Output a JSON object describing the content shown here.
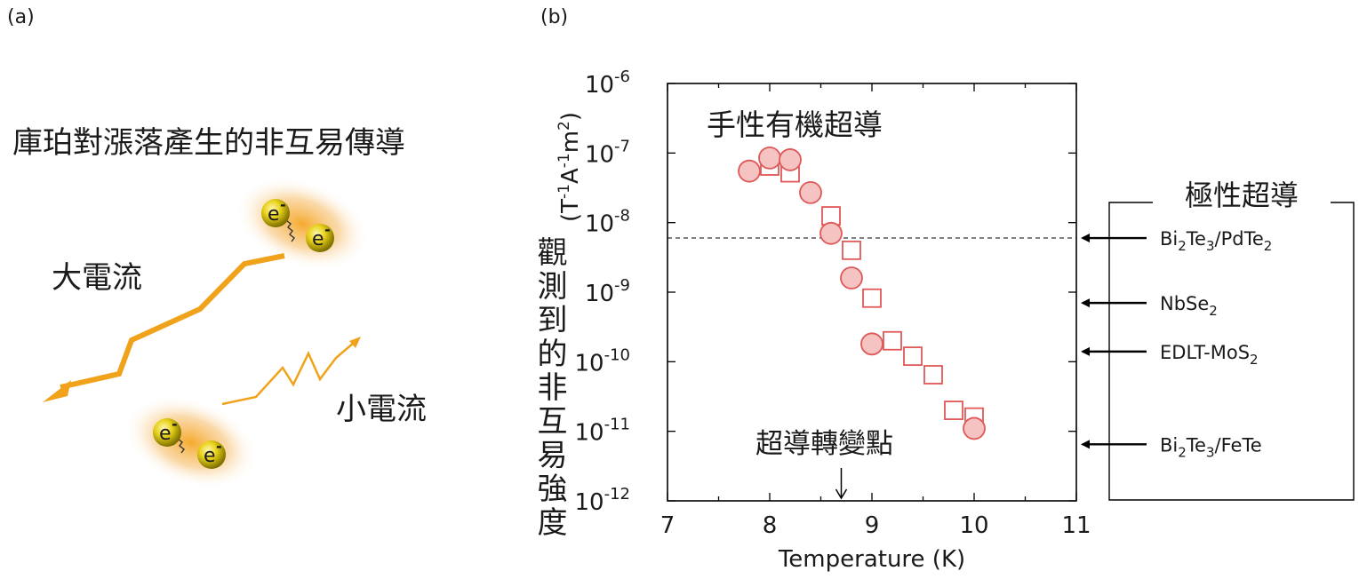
{
  "panel_a": {
    "label": "(a)",
    "title": "庫珀對漲落產生的非互易傳導",
    "large_current_label": "大電流",
    "small_current_label": "小電流",
    "electron_label": "e",
    "electron_superscript": "-"
  },
  "panel_b": {
    "label": "(b)",
    "polar_superconductors_label": "極性超導",
    "materials": [
      {
        "base": "Bi",
        "sub1": "2",
        "mid": "Te",
        "sub2": "3",
        "rest": "/PdTe",
        "sub3": "2",
        "value": 6e-09
      },
      {
        "base": "NbSe",
        "sub1": "2",
        "mid": "",
        "sub2": "",
        "rest": "",
        "sub3": "",
        "value": 7e-10
      },
      {
        "base": "EDLT-MoS",
        "sub1": "2",
        "mid": "",
        "sub2": "",
        "rest": "",
        "sub3": "",
        "value": 1.4e-10
      },
      {
        "base": "Bi",
        "sub1": "2",
        "mid": "Te",
        "sub2": "3",
        "rest": "/FeTe",
        "sub3": "",
        "value": 6.5e-12
      }
    ]
  },
  "chart_data": {
    "type": "scatter",
    "xlabel": "Temperature (K)",
    "ylabel_chinese": "觀測到的非互易強度",
    "ylabel_units": "(T-1A-1m2)",
    "xlim": [
      7,
      11
    ],
    "ylim": [
      1e-12,
      1e-06
    ],
    "yscale": "log",
    "x_ticks": [
      "7",
      "8",
      "9",
      "10",
      "11"
    ],
    "y_tick_exponents": [
      "-12",
      "-11",
      "-10",
      "-9",
      "-8",
      "-7",
      "-6"
    ],
    "y_tick_base": "10",
    "grid": false,
    "annotation_chiral": "手性有機超導",
    "annotation_transition": "超導轉變點",
    "transition_temperature": 8.7,
    "reference_line_value": 6e-09,
    "series": [
      {
        "marker": "circle-filled",
        "color": "#e05858",
        "fill": "#f6c3c3",
        "points": [
          [
            7.8,
            5.5e-08
          ],
          [
            8.0,
            8.5e-08
          ],
          [
            8.2,
            8e-08
          ],
          [
            8.4,
            2.7e-08
          ],
          [
            8.6,
            7e-09
          ],
          [
            8.8,
            1.6e-09
          ],
          [
            9.0,
            1.8e-10
          ],
          [
            10.0,
            1.1e-11
          ]
        ]
      },
      {
        "marker": "square-open",
        "color": "#e05858",
        "points": [
          [
            8.0,
            6.5e-08
          ],
          [
            8.2,
            5.2e-08
          ],
          [
            8.6,
            1.25e-08
          ],
          [
            8.8,
            4e-09
          ],
          [
            9.0,
            8.2e-10
          ],
          [
            9.2,
            2e-10
          ],
          [
            9.4,
            1.2e-10
          ],
          [
            9.6,
            6.5e-11
          ],
          [
            9.8,
            2e-11
          ],
          [
            10.0,
            1.6e-11
          ]
        ]
      }
    ]
  }
}
